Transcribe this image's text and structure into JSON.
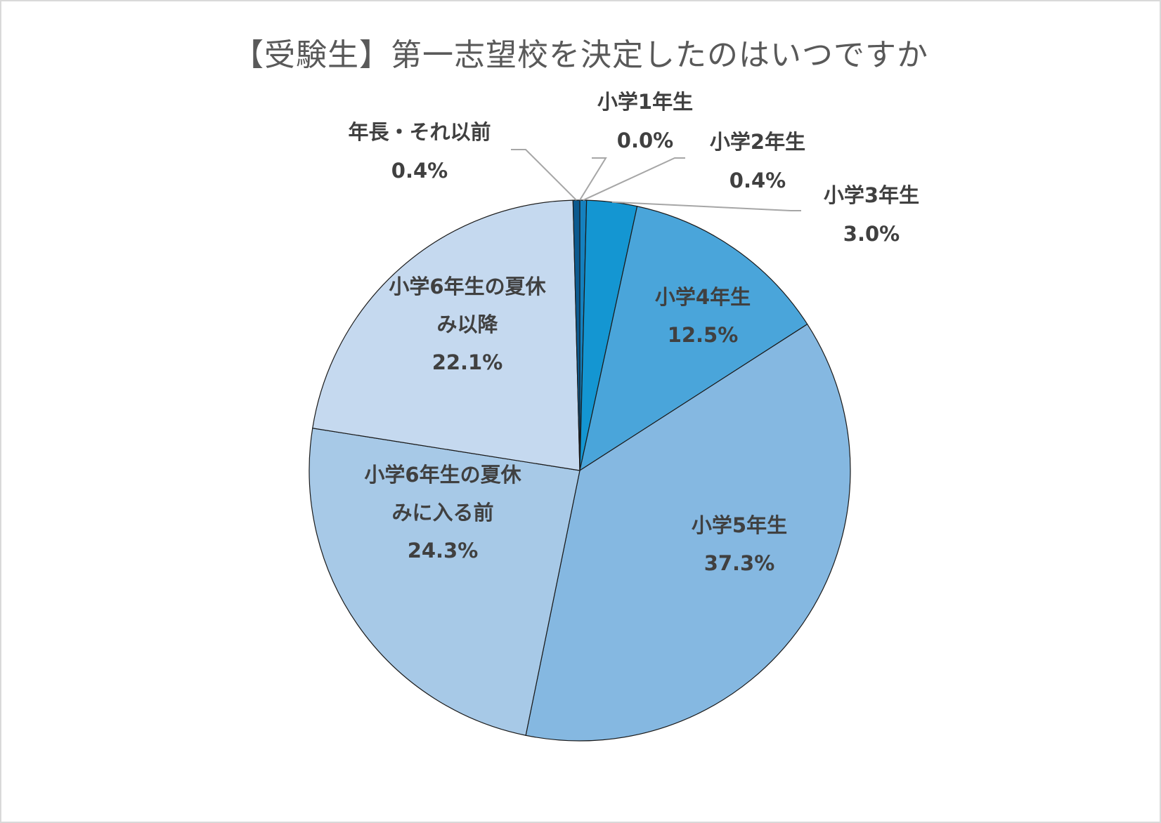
{
  "chart_data": {
    "type": "pie",
    "title": "【受験生】第一志望校を決定したのはいつですか",
    "start_angle_deg": 0,
    "direction": "clockwise",
    "slices": [
      {
        "label": "小学1年生",
        "value": 0.0,
        "value_label": "0.0%",
        "color": "#1f6fa8"
      },
      {
        "label": "小学2年生",
        "value": 0.4,
        "value_label": "0.4%",
        "color": "#1581bf"
      },
      {
        "label": "小学3年生",
        "value": 3.0,
        "value_label": "3.0%",
        "color": "#1496d2"
      },
      {
        "label": "小学4年生",
        "value": 12.5,
        "value_label": "12.5%",
        "color": "#4aa5da"
      },
      {
        "label": "小学5年生",
        "value": 37.3,
        "value_label": "37.3%",
        "color": "#85b8e1"
      },
      {
        "label": "小学6年生の夏休み に入る前",
        "value": 24.3,
        "value_label": "24.3%",
        "color": "#a7c9e7"
      },
      {
        "label": "小学6年生の夏休み 以降",
        "value": 22.1,
        "value_label": "22.1%",
        "color": "#c5d9ef"
      },
      {
        "label": "年長・それ以前",
        "value": 0.4,
        "value_label": "0.4%",
        "color": "#0b5a8f"
      }
    ],
    "label_lines": [
      [
        "小学1年生"
      ],
      [
        "小学2年生"
      ],
      [
        "小学3年生"
      ],
      [
        "小学4年生"
      ],
      [
        "小学5年生"
      ],
      [
        "小学6年生の夏休",
        "みに入る前"
      ],
      [
        "小学6年生の夏休",
        "み以降"
      ],
      [
        "年長・それ以前"
      ]
    ],
    "legend": "none"
  }
}
